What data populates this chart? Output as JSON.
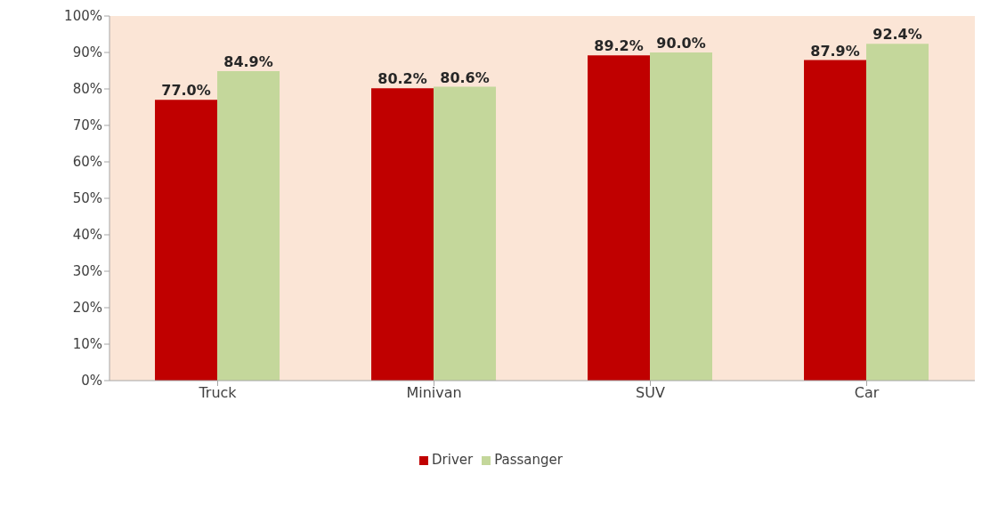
{
  "chart_data": {
    "type": "bar",
    "categories": [
      "Truck",
      "Minivan",
      "SUV",
      "Car"
    ],
    "series": [
      {
        "name": "Driver",
        "color": "#c00000",
        "values": [
          77.0,
          80.2,
          89.2,
          87.9
        ],
        "value_labels": [
          "77.0%",
          "80.2%",
          "89.2%",
          "87.9%"
        ]
      },
      {
        "name": "Passanger",
        "color": "#c4d79b",
        "values": [
          84.9,
          80.6,
          90.0,
          92.4
        ],
        "value_labels": [
          "84.9%",
          "80.6%",
          "90.0%",
          "92.4%"
        ]
      }
    ],
    "ylim": [
      0,
      100
    ],
    "yticks": [
      {
        "value": 0,
        "label": "0%"
      },
      {
        "value": 10,
        "label": "10%"
      },
      {
        "value": 20,
        "label": "20%"
      },
      {
        "value": 30,
        "label": "30%"
      },
      {
        "value": 40,
        "label": "40%"
      },
      {
        "value": 50,
        "label": "50%"
      },
      {
        "value": 60,
        "label": "60%"
      },
      {
        "value": 70,
        "label": "70%"
      },
      {
        "value": 80,
        "label": "80%"
      },
      {
        "value": 90,
        "label": "90%"
      },
      {
        "value": 100,
        "label": "100%"
      }
    ],
    "grid": false,
    "legend": "bottom"
  }
}
